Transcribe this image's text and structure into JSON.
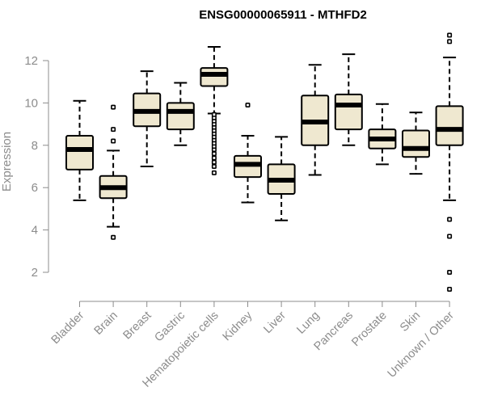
{
  "chart_data": {
    "type": "boxplot",
    "title": "ENSG00000065911 - MTHFD2",
    "xlabel": "",
    "ylabel": "Expression",
    "ylim": [
      0.9,
      13.3
    ],
    "yticks": [
      2,
      4,
      6,
      8,
      10,
      12
    ],
    "grid": false,
    "box_fill": "#efe8d0",
    "categories": [
      "Bladder",
      "Brain",
      "Breast",
      "Gastric",
      "Hematopoietic cells",
      "Kidney",
      "Liver",
      "Lung",
      "Pancreas",
      "Prostate",
      "Skin",
      "Unknown / Other"
    ],
    "boxes": [
      {
        "name": "Bladder",
        "whisker_low": 5.4,
        "q1": 6.85,
        "median": 7.8,
        "q3": 8.45,
        "whisker_high": 10.1,
        "outliers": []
      },
      {
        "name": "Brain",
        "whisker_low": 4.15,
        "q1": 5.5,
        "median": 6.0,
        "q3": 6.55,
        "whisker_high": 7.75,
        "outliers": [
          3.65,
          8.2,
          8.75,
          9.8
        ]
      },
      {
        "name": "Breast",
        "whisker_low": 7.0,
        "q1": 8.9,
        "median": 9.6,
        "q3": 10.45,
        "whisker_high": 11.5,
        "outliers": []
      },
      {
        "name": "Gastric",
        "whisker_low": 8.0,
        "q1": 8.75,
        "median": 9.6,
        "q3": 10.0,
        "whisker_high": 10.95,
        "outliers": []
      },
      {
        "name": "Hematopoietic cells",
        "whisker_low": 9.5,
        "q1": 10.8,
        "median": 11.35,
        "q3": 11.65,
        "whisker_high": 12.65,
        "outliers": [
          6.7,
          7.0,
          7.2,
          7.4,
          7.6,
          7.8,
          7.95,
          8.1,
          8.25,
          8.4,
          8.55,
          8.7,
          8.85,
          9.0,
          9.15,
          9.3,
          9.45
        ]
      },
      {
        "name": "Kidney",
        "whisker_low": 5.3,
        "q1": 6.5,
        "median": 7.1,
        "q3": 7.5,
        "whisker_high": 8.45,
        "outliers": [
          9.9
        ]
      },
      {
        "name": "Liver",
        "whisker_low": 4.45,
        "q1": 5.7,
        "median": 6.35,
        "q3": 7.1,
        "whisker_high": 8.4,
        "outliers": []
      },
      {
        "name": "Lung",
        "whisker_low": 6.6,
        "q1": 8.0,
        "median": 9.1,
        "q3": 10.35,
        "whisker_high": 11.8,
        "outliers": []
      },
      {
        "name": "Pancreas",
        "whisker_low": 8.0,
        "q1": 8.75,
        "median": 9.9,
        "q3": 10.4,
        "whisker_high": 12.3,
        "outliers": []
      },
      {
        "name": "Prostate",
        "whisker_low": 7.1,
        "q1": 7.85,
        "median": 8.3,
        "q3": 8.75,
        "whisker_high": 9.95,
        "outliers": []
      },
      {
        "name": "Skin",
        "whisker_low": 6.65,
        "q1": 7.45,
        "median": 7.85,
        "q3": 8.7,
        "whisker_high": 9.55,
        "outliers": []
      },
      {
        "name": "Unknown / Other",
        "whisker_low": 5.4,
        "q1": 8.0,
        "median": 8.75,
        "q3": 9.85,
        "whisker_high": 12.15,
        "outliers": [
          1.2,
          2.0,
          3.7,
          4.5,
          12.9,
          13.2
        ]
      }
    ]
  }
}
